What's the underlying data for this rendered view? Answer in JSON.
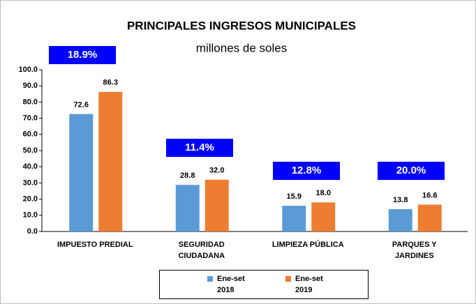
{
  "chart_data": {
    "type": "bar",
    "title": "PRINCIPALES INGRESOS MUNICIPALES",
    "subtitle": "millones de soles",
    "categories": [
      "IMPUESTO PREDIAL",
      "SEGURIDAD CIUDADANA",
      "LIMPIEZA PÚBLICA",
      "PARQUES Y JARDINES"
    ],
    "series": [
      {
        "name": "Ene-set 2018",
        "color": "#5b9bd5",
        "values": [
          72.6,
          28.8,
          15.9,
          13.8
        ],
        "value_labels": [
          "72.6",
          "28.8",
          "15.9",
          "13.8"
        ]
      },
      {
        "name": "Ene-set 2019",
        "color": "#ed7d31",
        "values": [
          86.3,
          32.0,
          18.0,
          16.6
        ],
        "value_labels": [
          "86.3",
          "32.0",
          "18.0",
          "16.6"
        ]
      }
    ],
    "annotations": [
      "18.9%",
      "11.4%",
      "12.8%",
      "20.0%"
    ],
    "ylim": [
      0,
      100
    ],
    "yticks": [
      {
        "value": 0,
        "label": "0.0"
      },
      {
        "value": 10,
        "label": "10.0"
      },
      {
        "value": 20,
        "label": "20.0"
      },
      {
        "value": 30,
        "label": "30.0"
      },
      {
        "value": 40,
        "label": "40.0"
      },
      {
        "value": 50,
        "label": "50.0"
      },
      {
        "value": 60,
        "label": "60.0"
      },
      {
        "value": 70,
        "label": "70.0"
      },
      {
        "value": 80,
        "label": "80.0"
      },
      {
        "value": 90,
        "label": "90.0"
      },
      {
        "value": 100,
        "label": "100.0"
      }
    ],
    "grid": false,
    "legend": "bottom"
  }
}
